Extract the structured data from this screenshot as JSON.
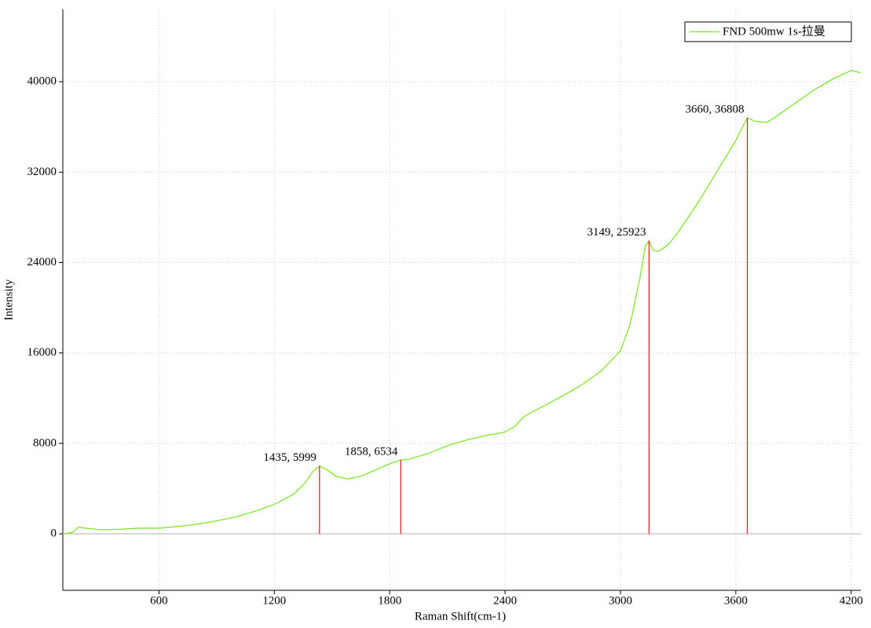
{
  "chart_data": {
    "type": "line",
    "x_label": "Raman Shift(cm-1)",
    "y_label": "Intensity",
    "xlim": [
      100,
      4250
    ],
    "ylim": [
      -5000,
      46400
    ],
    "xticks": [
      600,
      1200,
      1800,
      2400,
      3000,
      3600,
      4200
    ],
    "yticks": [
      0,
      8000,
      16000,
      24000,
      32000,
      40000
    ],
    "grid": true,
    "legend": "upper right",
    "series": [
      {
        "name": "FND 500mw 1s-拉曼",
        "color": "#7fe52a",
        "x": [
          100,
          150,
          180,
          220,
          300,
          400,
          500,
          600,
          700,
          800,
          900,
          1000,
          1100,
          1200,
          1300,
          1360,
          1400,
          1435,
          1470,
          1520,
          1580,
          1650,
          1720,
          1800,
          1858,
          1900,
          2000,
          2100,
          2200,
          2300,
          2400,
          2450,
          2500,
          2600,
          2700,
          2800,
          2900,
          3000,
          3050,
          3100,
          3130,
          3149,
          3170,
          3200,
          3250,
          3300,
          3400,
          3500,
          3600,
          3660,
          3700,
          3760,
          3800,
          3900,
          4000,
          4100,
          4200,
          4250
        ],
        "values": [
          0,
          100,
          600,
          500,
          350,
          400,
          500,
          500,
          650,
          850,
          1150,
          1500,
          2000,
          2600,
          3500,
          4500,
          5500,
          5999,
          5700,
          5100,
          4850,
          5100,
          5600,
          6200,
          6534,
          6600,
          7100,
          7800,
          8300,
          8700,
          9000,
          9500,
          10400,
          11300,
          12200,
          13200,
          14400,
          16200,
          18500,
          22500,
          25500,
          25923,
          25100,
          25000,
          25600,
          26700,
          29200,
          32000,
          34800,
          36808,
          36500,
          36400,
          36800,
          38000,
          39200,
          40200,
          41000,
          40800
        ]
      }
    ],
    "peaks": {
      "color": "#e0202a",
      "points": [
        {
          "x": 1435,
          "y": 5999,
          "label": "1435, 5999"
        },
        {
          "x": 1858,
          "y": 6534,
          "label": "1858, 6534"
        },
        {
          "x": 3149,
          "y": 25923,
          "label": "3149, 25923"
        },
        {
          "x": 3660,
          "y": 36808,
          "label": "3660, 36808"
        }
      ]
    }
  }
}
